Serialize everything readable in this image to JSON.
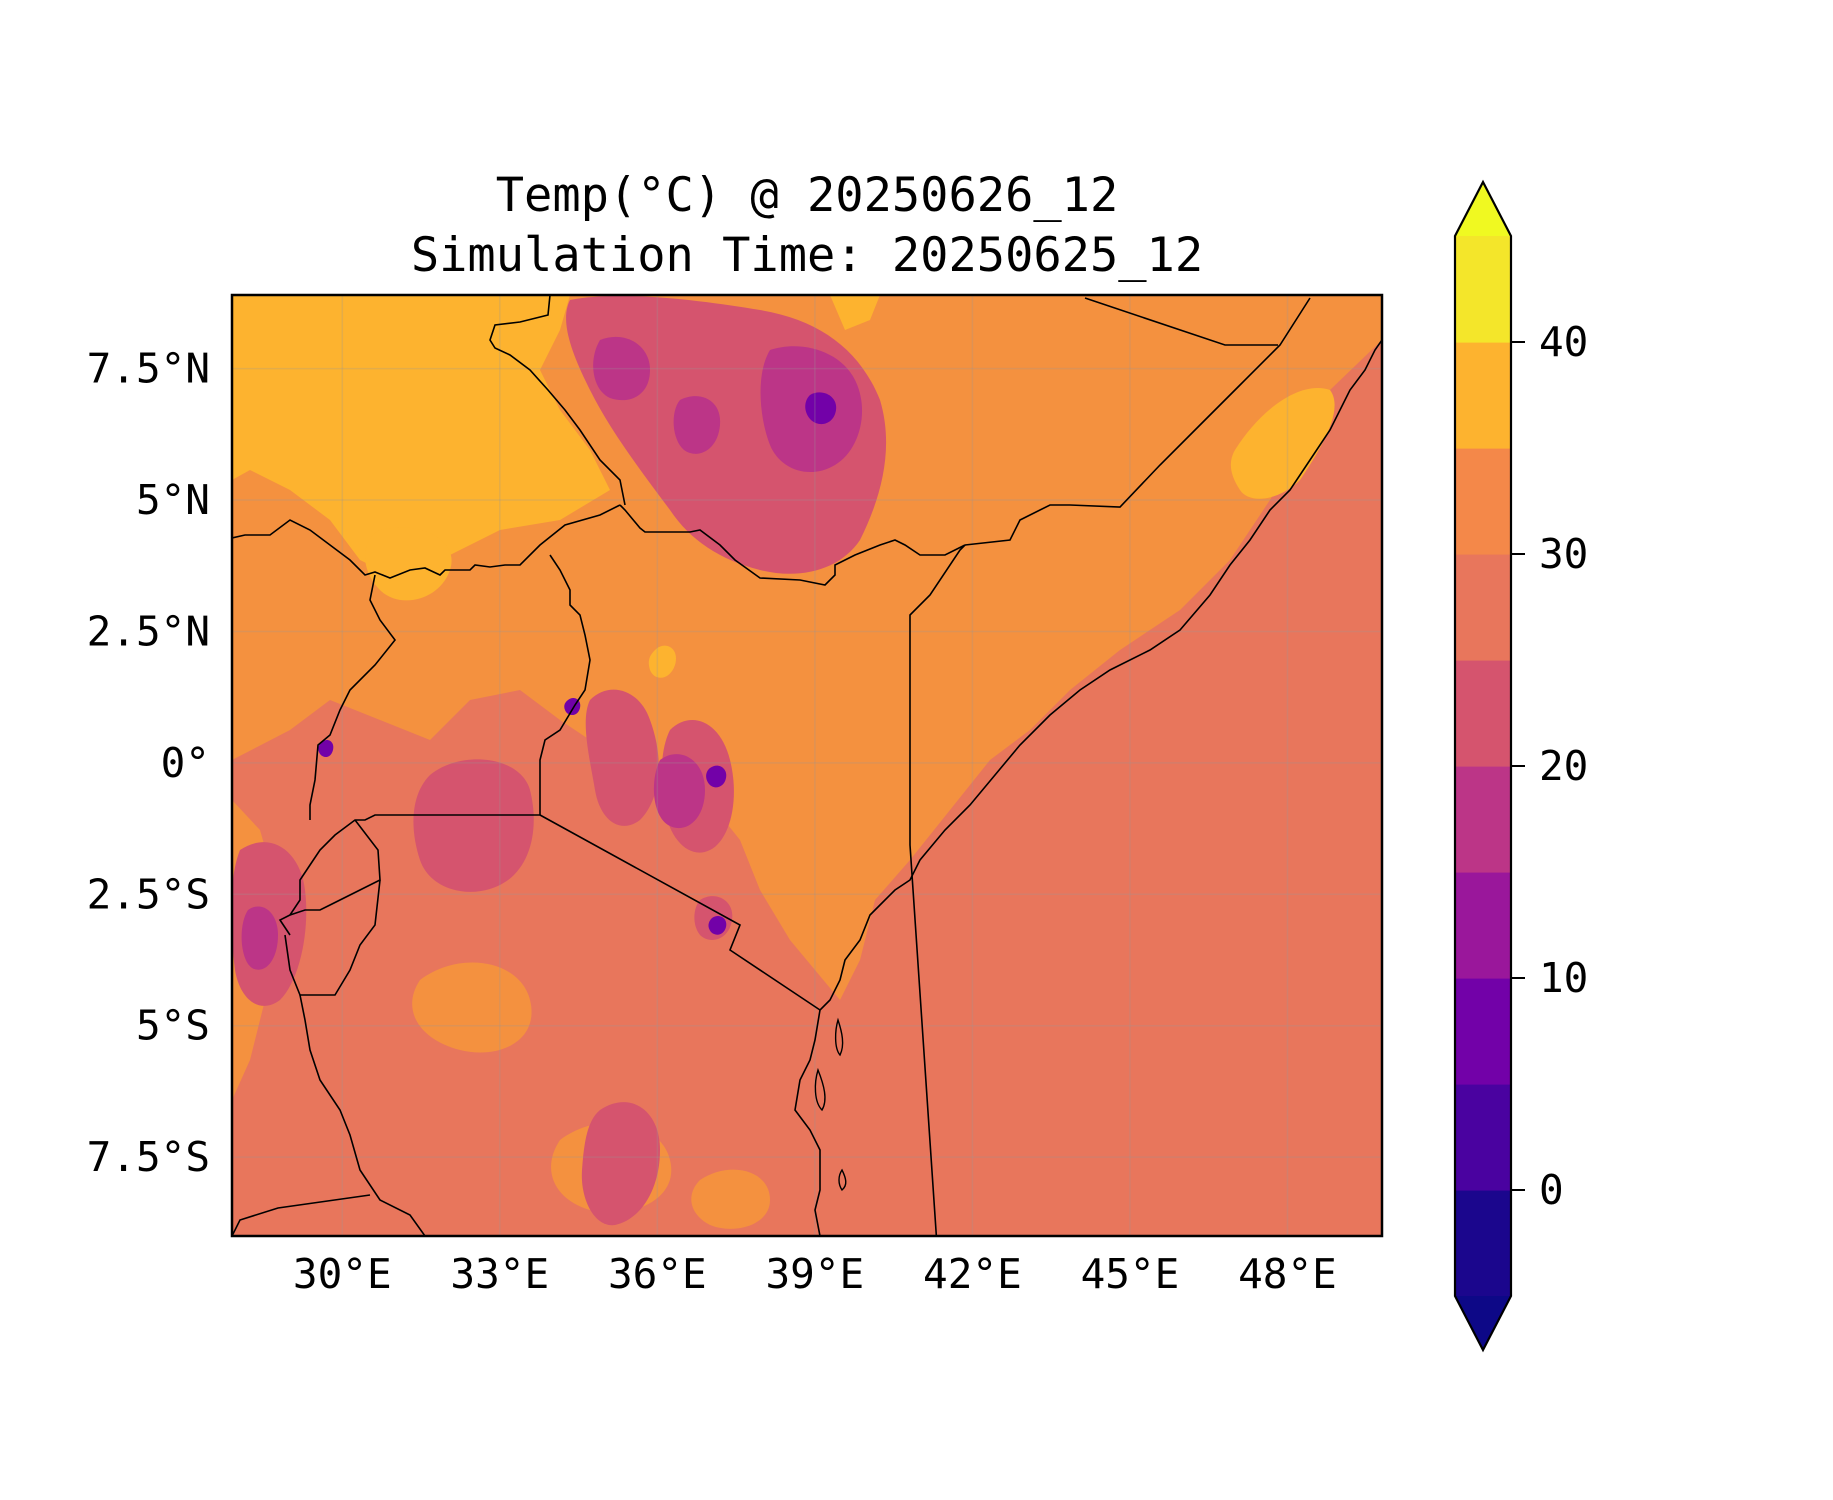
{
  "title": {
    "line1": "Temp(°C) @ 20250626_12",
    "line2": "Simulation Time: 20250625_12"
  },
  "map": {
    "lon_range": [
      27.9,
      49.8
    ],
    "lat_range": [
      -9.0,
      8.9
    ],
    "x_ticks": [
      {
        "value": 30,
        "label": "30°E"
      },
      {
        "value": 33,
        "label": "33°E"
      },
      {
        "value": 36,
        "label": "36°E"
      },
      {
        "value": 39,
        "label": "39°E"
      },
      {
        "value": 42,
        "label": "42°E"
      },
      {
        "value": 45,
        "label": "45°E"
      },
      {
        "value": 48,
        "label": "48°E"
      }
    ],
    "y_ticks": [
      {
        "value": 7.5,
        "label": "7.5°N"
      },
      {
        "value": 5,
        "label": "5°N"
      },
      {
        "value": 2.5,
        "label": "2.5°N"
      },
      {
        "value": 0,
        "label": "0°"
      },
      {
        "value": -2.5,
        "label": "2.5°S"
      },
      {
        "value": -5,
        "label": "5°S"
      },
      {
        "value": -7.5,
        "label": "7.5°S"
      }
    ],
    "gridlines": true
  },
  "colorbar": {
    "range": [
      -5,
      45
    ],
    "extend": "both",
    "levels": [
      -5,
      0,
      5,
      10,
      15,
      20,
      25,
      30,
      35,
      40,
      45
    ],
    "colors": [
      "#1b068d",
      "#4a02a0",
      "#7201a8",
      "#9a179b",
      "#bc3587",
      "#d5546e",
      "#e8765c",
      "#f48849",
      "#fdb32f",
      "#f4e62a"
    ],
    "under_color": "#0d0887",
    "over_color": "#f0f921",
    "ticks": [
      {
        "value": 0,
        "label": "0"
      },
      {
        "value": 10,
        "label": "10"
      },
      {
        "value": 20,
        "label": "20"
      },
      {
        "value": 30,
        "label": "30"
      },
      {
        "value": 40,
        "label": "40"
      }
    ]
  },
  "colors": {
    "ocean": "#e8765c",
    "warm": "#f4913f",
    "hot": "#fdb32f",
    "cool": "#d5546e",
    "cold": "#bc3587",
    "coldest": "#7201a8",
    "border": "#000000"
  }
}
